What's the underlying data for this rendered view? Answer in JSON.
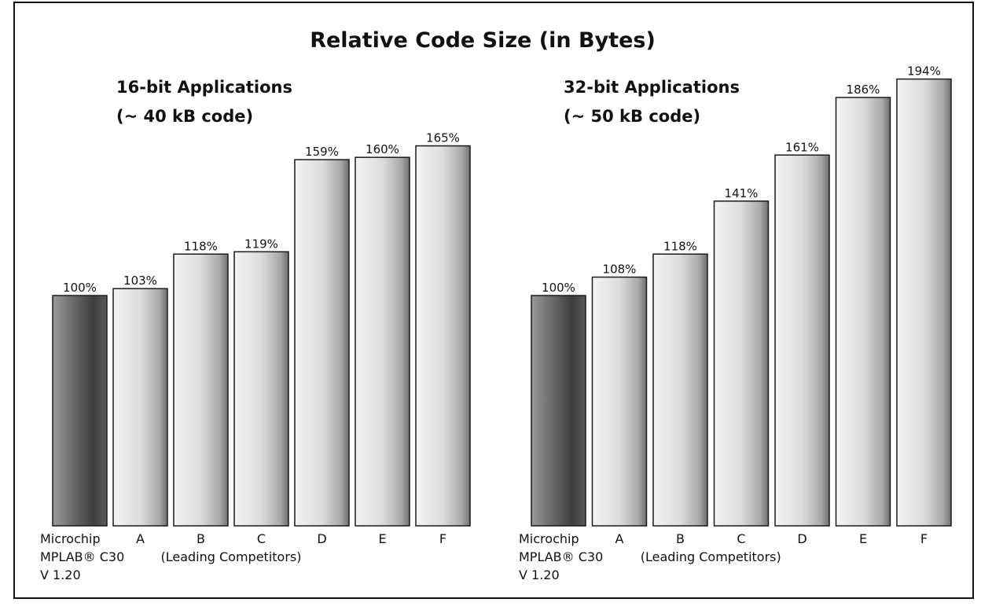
{
  "title": "Relative Code Size (in Bytes)",
  "chart_data": [
    {
      "type": "bar",
      "title": "16-bit Applications",
      "subtitle": "(~ 40 kB code)",
      "categories": [
        "Microchip",
        "A",
        "B",
        "C",
        "D",
        "E",
        "F"
      ],
      "values": [
        100,
        103,
        118,
        119,
        159,
        160,
        165
      ],
      "value_labels": [
        "100%",
        "103%",
        "118%",
        "119%",
        "159%",
        "160%",
        "165%"
      ],
      "first_bar_label_lines": [
        "MPLAB® C30",
        "V 1.20"
      ],
      "group_label": "(Leading Competitors)",
      "ylim": [
        0,
        200
      ],
      "grid": false,
      "colors": {
        "microchip": "#6a6a6a",
        "competitor": "#cfcfcf"
      }
    },
    {
      "type": "bar",
      "title": "32-bit Applications",
      "subtitle": "(~ 50 kB code)",
      "categories": [
        "Microchip",
        "A",
        "B",
        "C",
        "D",
        "E",
        "F"
      ],
      "values": [
        100,
        108,
        118,
        141,
        161,
        186,
        194
      ],
      "value_labels": [
        "100%",
        "108%",
        "118%",
        "141%",
        "161%",
        "186%",
        "194%"
      ],
      "first_bar_label_lines": [
        "MPLAB® C30",
        "V 1.20"
      ],
      "group_label": "(Leading Competitors)",
      "ylim": [
        0,
        200
      ],
      "grid": false,
      "colors": {
        "microchip": "#6a6a6a",
        "competitor": "#cfcfcf"
      }
    }
  ]
}
